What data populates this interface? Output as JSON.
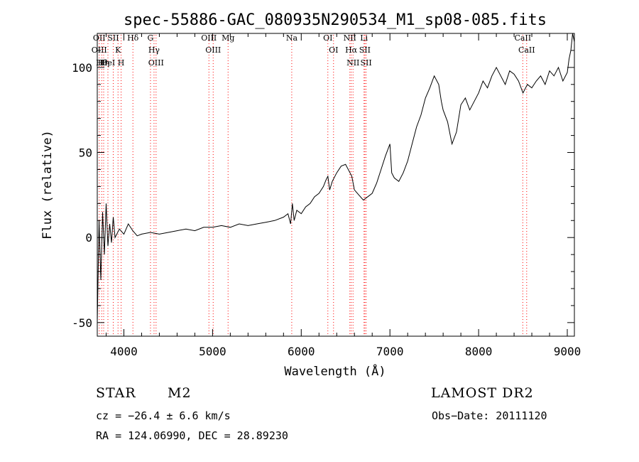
{
  "chart_data": {
    "type": "line",
    "title": "spec-55886-GAC_080935N290534_M1_sp08-085.fits",
    "xlabel": "Wavelength (Å)",
    "ylabel": "Flux (relative)",
    "xlim": [
      3700,
      9080
    ],
    "ylim": [
      -58,
      120
    ],
    "xticks": [
      4000,
      5000,
      6000,
      7000,
      8000,
      9000
    ],
    "yticks": [
      -50,
      0,
      50,
      100
    ],
    "grid": false,
    "series": [
      {
        "color": "#000000",
        "x": [
          3700,
          3720,
          3740,
          3760,
          3780,
          3800,
          3820,
          3840,
          3860,
          3880,
          3900,
          3950,
          4000,
          4050,
          4100,
          4150,
          4200,
          4300,
          4400,
          4500,
          4600,
          4700,
          4800,
          4900,
          5000,
          5100,
          5200,
          5300,
          5400,
          5500,
          5600,
          5700,
          5800,
          5850,
          5880,
          5900,
          5920,
          5950,
          6000,
          6050,
          6100,
          6150,
          6200,
          6250,
          6280,
          6300,
          6320,
          6350,
          6400,
          6450,
          6500,
          6550,
          6570,
          6600,
          6650,
          6700,
          6750,
          6800,
          6850,
          6900,
          6950,
          7000,
          7020,
          7050,
          7100,
          7150,
          7200,
          7250,
          7300,
          7350,
          7400,
          7450,
          7500,
          7550,
          7580,
          7600,
          7650,
          7700,
          7750,
          7800,
          7850,
          7900,
          7950,
          8000,
          8050,
          8100,
          8150,
          8200,
          8250,
          8300,
          8350,
          8400,
          8450,
          8500,
          8550,
          8600,
          8650,
          8700,
          8750,
          8800,
          8850,
          8900,
          8950,
          9000,
          9020,
          9040,
          9060,
          9080
        ],
        "y": [
          -50,
          10,
          -25,
          15,
          -10,
          20,
          -5,
          8,
          -3,
          12,
          0,
          5,
          2,
          8,
          4,
          1,
          2,
          3,
          2,
          3,
          4,
          5,
          4,
          6,
          6,
          7,
          6,
          8,
          7,
          8,
          9,
          10,
          12,
          14,
          8,
          20,
          10,
          16,
          14,
          18,
          20,
          24,
          26,
          30,
          34,
          36,
          28,
          33,
          38,
          42,
          43,
          38,
          36,
          28,
          25,
          22,
          24,
          26,
          32,
          40,
          48,
          55,
          38,
          35,
          33,
          38,
          45,
          55,
          65,
          72,
          82,
          88,
          95,
          90,
          80,
          75,
          68,
          55,
          62,
          78,
          82,
          75,
          80,
          85,
          92,
          88,
          95,
          100,
          95,
          90,
          98,
          96,
          92,
          85,
          90,
          88,
          92,
          95,
          90,
          98,
          95,
          100,
          92,
          97,
          105,
          110,
          120,
          115
        ]
      }
    ],
    "line_markers": [
      {
        "wavelength": 3722,
        "labels": [
          "OII",
          "OIII"
        ]
      },
      {
        "wavelength": 3750,
        "labels": [
          "Hθ"
        ]
      },
      {
        "wavelength": 3772,
        "labels": [
          "Hη"
        ]
      },
      {
        "wavelength": 3820,
        "labels": [
          "HeI"
        ]
      },
      {
        "wavelength": 3880,
        "labels": [
          "SII"
        ]
      },
      {
        "wavelength": 3934,
        "labels": [
          "K"
        ]
      },
      {
        "wavelength": 3969,
        "labels": [
          "H"
        ]
      },
      {
        "wavelength": 4102,
        "labels": [
          "Hδ"
        ]
      },
      {
        "wavelength": 4300,
        "labels": [
          "G"
        ]
      },
      {
        "wavelength": 4340,
        "labels": [
          "Hγ"
        ]
      },
      {
        "wavelength": 4363,
        "labels": [
          "OIII"
        ]
      },
      {
        "wavelength": 4959,
        "labels": [
          "OIII"
        ]
      },
      {
        "wavelength": 5007,
        "labels": [
          "OIII"
        ]
      },
      {
        "wavelength": 5175,
        "labels": [
          "Mg"
        ]
      },
      {
        "wavelength": 5893,
        "labels": [
          "Na"
        ]
      },
      {
        "wavelength": 6300,
        "labels": [
          "OI"
        ]
      },
      {
        "wavelength": 6364,
        "labels": [
          "OI"
        ]
      },
      {
        "wavelength": 6548,
        "labels": [
          "NII"
        ]
      },
      {
        "wavelength": 6563,
        "labels": [
          "Hα"
        ]
      },
      {
        "wavelength": 6584,
        "labels": [
          "NII"
        ]
      },
      {
        "wavelength": 6708,
        "labels": [
          "Li"
        ]
      },
      {
        "wavelength": 6717,
        "labels": [
          "SII"
        ]
      },
      {
        "wavelength": 6731,
        "labels": [
          "SII"
        ]
      },
      {
        "wavelength": 8498,
        "labels": [
          "CaII"
        ]
      },
      {
        "wavelength": 8542,
        "labels": [
          "CaII"
        ]
      }
    ]
  },
  "info": {
    "class": "STAR",
    "subclass": "M2",
    "survey": "LAMOST DR2",
    "cz": "cz = −26.4 ± 6.6 km/s",
    "obs_date": "Obs−Date: 20111120",
    "coords": "RA = 124.06990, DEC =  28.89230"
  }
}
